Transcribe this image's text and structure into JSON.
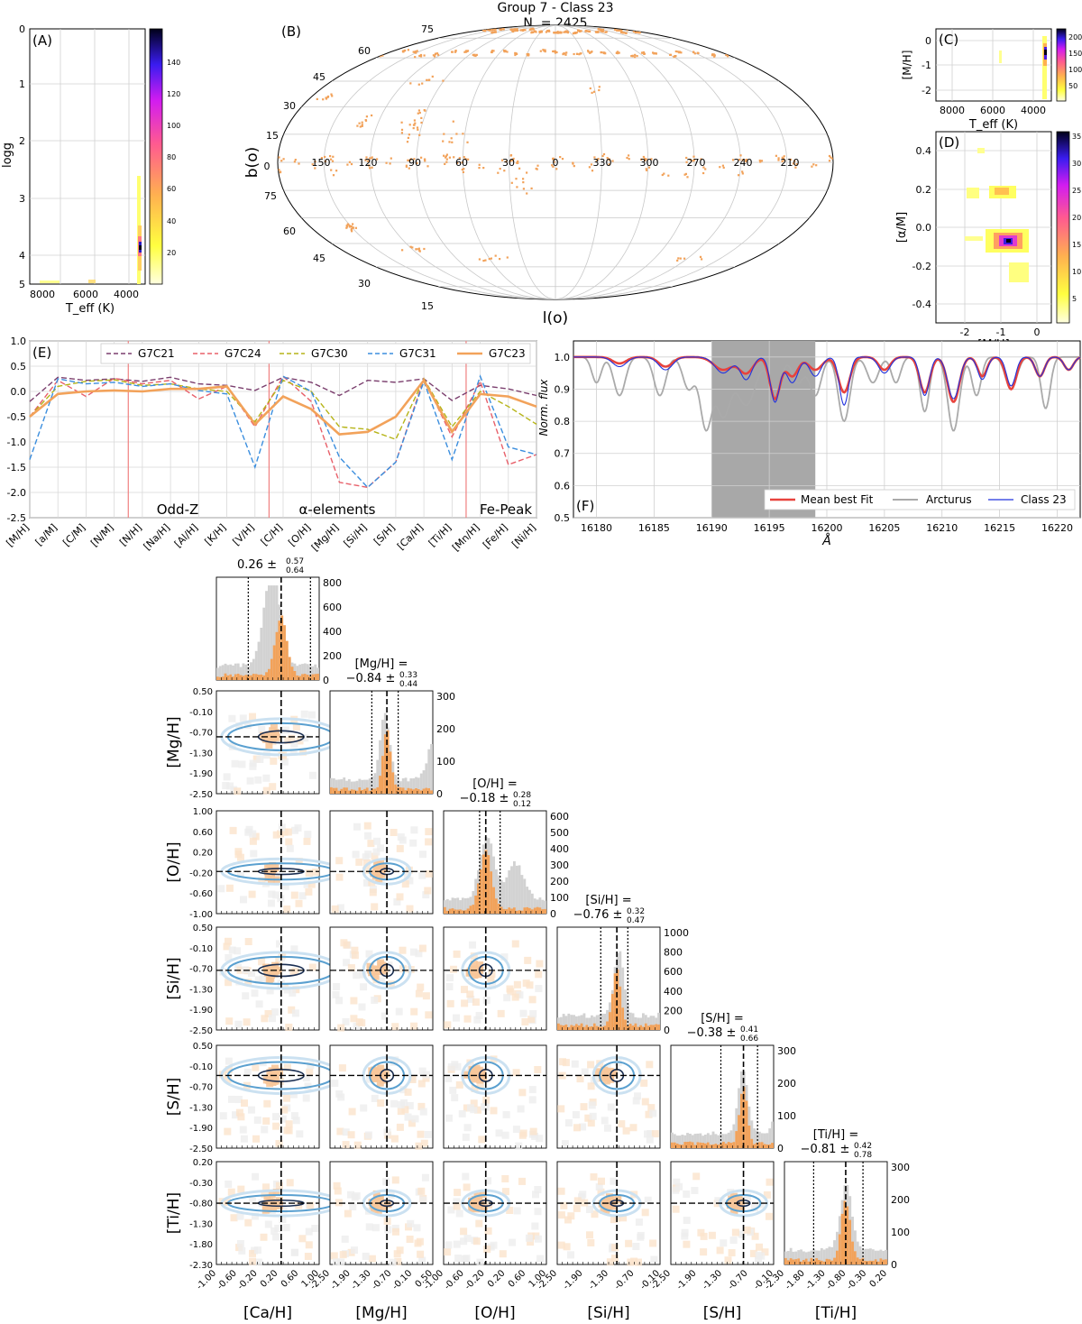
{
  "figure": {
    "title_line1": "Group 7 - Class 23",
    "title_line2": "N. = 2425"
  },
  "colors": {
    "accent_orange": "#f2a25a",
    "red": "#e8433d",
    "grey": "#aaaaaa",
    "blue": "#2233dd",
    "contour_light": "#a9cde6",
    "contour_mid": "#5aa0d0",
    "contour_dark": "#1b2f52"
  },
  "chart_data": [
    {
      "id": "A",
      "type": "heatmap",
      "panel_label": "(A)",
      "xlabel": "T_eff (K)",
      "ylabel": "logg",
      "xlim": [
        8900,
        3300
      ],
      "ylim": [
        5,
        0
      ],
      "xticks": [
        "8000",
        "6000",
        "4000"
      ],
      "yticks": [
        "0",
        "1",
        "2",
        "3",
        "4",
        "5"
      ],
      "colorbar_ticks": [
        "140",
        "120",
        "100",
        "80",
        "60",
        "40",
        "20"
      ],
      "colorbar_range": [
        0,
        160
      ]
    },
    {
      "id": "B",
      "type": "scatter",
      "panel_label": "(B)",
      "projection": "Mollweide",
      "xlabel": "l(o)",
      "ylabel": "b(o)",
      "longitude_labels": [
        "150",
        "120",
        "90",
        "60",
        "30",
        "0",
        "330",
        "300",
        "270",
        "240",
        "210"
      ],
      "latitude_labels_upper": [
        "75",
        "60",
        "45",
        "30",
        "15",
        "0"
      ],
      "latitude_labels_lower": [
        "75",
        "60",
        "45",
        "30",
        "15"
      ]
    },
    {
      "id": "C",
      "type": "heatmap",
      "panel_label": "(C)",
      "xlabel": "T_eff (K)",
      "ylabel": "[M/H]",
      "xlim": [
        8900,
        3300
      ],
      "ylim": [
        -2.4,
        0.5
      ],
      "xticks": [
        "8000",
        "6000",
        "4000"
      ],
      "yticks": [
        "0",
        "-1",
        "-2"
      ],
      "colorbar_ticks": [
        "200",
        "150",
        "100",
        "50"
      ]
    },
    {
      "id": "D",
      "type": "heatmap",
      "panel_label": "(D)",
      "xlabel": "[M/H]",
      "ylabel": "[α/M]",
      "xlim": [
        -2.6,
        0.6
      ],
      "ylim": [
        -0.5,
        0.5
      ],
      "xticks": [
        "-2",
        "-1",
        "0"
      ],
      "yticks": [
        "0.4",
        "0.2",
        "0.0",
        "-0.2",
        "-0.4"
      ],
      "colorbar_ticks": [
        "35",
        "30",
        "25",
        "20",
        "15",
        "10",
        "5"
      ]
    },
    {
      "id": "E",
      "type": "line",
      "panel_label": "(E)",
      "ylim": [
        -2.5,
        1.0
      ],
      "yticks": [
        "1.0",
        "0.5",
        "0.0",
        "-0.5",
        "-1.0",
        "-1.5",
        "-2.0",
        "-2.5"
      ],
      "categories": [
        "[M/H]",
        "[a/M]",
        "[C/M]",
        "[N/M]",
        "[N/H]",
        "[Na/H]",
        "[Al/H]",
        "[K/H]",
        "[V/H]",
        "[C/H]",
        "[O/H]",
        "[Mg/H]",
        "[Si/H]",
        "[S/H]",
        "[Ca/H]",
        "[Ti/H]",
        "[Mn/H]",
        "[Fe/H]",
        "[Ni/H]"
      ],
      "group_labels": [
        "Odd-Z",
        "α-elements",
        "Fe-Peak"
      ],
      "series": [
        {
          "name": "G7C21",
          "color": "#7b3f6e",
          "dashed": true,
          "values": [
            -0.2,
            0.28,
            0.22,
            0.25,
            0.2,
            0.28,
            0.15,
            0.12,
            0.02,
            0.28,
            0.18,
            -0.08,
            0.22,
            0.18,
            0.25,
            -0.18,
            0.12,
            0.05,
            -0.08
          ]
        },
        {
          "name": "G7C24",
          "color": "#e8606a",
          "dashed": true,
          "values": [
            -0.5,
            0.22,
            -0.1,
            0.26,
            0.15,
            0.22,
            -0.15,
            0.1,
            -0.7,
            0.3,
            -0.2,
            -1.8,
            -1.9,
            -1.4,
            0.25,
            -0.9,
            0.2,
            -1.45,
            -1.25
          ]
        },
        {
          "name": "G7C30",
          "color": "#b6b418",
          "dashed": true,
          "values": [
            -0.5,
            0.1,
            0.2,
            0.23,
            0.12,
            0.15,
            0.05,
            0.0,
            -0.6,
            0.22,
            0.0,
            -0.7,
            -0.75,
            -0.95,
            0.25,
            -0.7,
            0.0,
            -0.3,
            -0.65
          ]
        },
        {
          "name": "G7C31",
          "color": "#3b8ede",
          "dashed": true,
          "values": [
            -1.35,
            0.25,
            0.15,
            0.18,
            0.1,
            0.15,
            0.02,
            -0.05,
            -1.5,
            0.3,
            0.0,
            -1.3,
            -1.9,
            -1.4,
            0.2,
            -1.35,
            0.3,
            -1.1,
            -1.25
          ]
        },
        {
          "name": "G7C23",
          "color": "#f2a25a",
          "dashed": false,
          "values": [
            -0.5,
            -0.05,
            0.0,
            0.02,
            0.0,
            0.05,
            0.05,
            0.1,
            -0.65,
            -0.1,
            -0.35,
            -0.85,
            -0.8,
            -0.5,
            0.22,
            -0.8,
            -0.05,
            -0.1,
            -0.3
          ]
        }
      ]
    },
    {
      "id": "F",
      "type": "line",
      "panel_label": "(F)",
      "xlabel": "Å",
      "ylabel": "Norm. flux",
      "xlim": [
        16178,
        16222
      ],
      "ylim": [
        0.5,
        1.05
      ],
      "xticks": [
        "16180",
        "16185",
        "16190",
        "16195",
        "16200",
        "16205",
        "16210",
        "16215",
        "16220"
      ],
      "yticks": [
        "1.0",
        "0.9",
        "0.8",
        "0.7",
        "0.6",
        "0.5"
      ],
      "shaded_region": [
        16190,
        16199
      ],
      "series": [
        {
          "name": "Mean best Fit",
          "color": "#e8433d"
        },
        {
          "name": "Arcturus",
          "color": "#aaaaaa"
        },
        {
          "name": "Class 23",
          "color": "#2233dd"
        }
      ]
    },
    {
      "id": "corner",
      "type": "heatmap",
      "variables": [
        "[Ca/H]",
        "[Mg/H]",
        "[O/H]",
        "[Si/H]",
        "[S/H]",
        "[Ti/H]"
      ],
      "medians": [
        0.26,
        -0.84,
        -0.18,
        -0.76,
        -0.38,
        -0.81
      ],
      "upper_errors": [
        0.57,
        0.33,
        0.28,
        0.32,
        0.41,
        0.42
      ],
      "lower_errors": [
        0.64,
        0.44,
        0.12,
        0.47,
        0.66,
        0.78
      ],
      "titles": [
        {
          "median": "0.26",
          "up": "0.57",
          "low": "0.64"
        },
        {
          "label": "[Mg/H] =",
          "median": "−0.84",
          "up": "0.33",
          "low": "0.44"
        },
        {
          "label": "[O/H] =",
          "median": "−0.18",
          "up": "0.28",
          "low": "0.12"
        },
        {
          "label": "[Si/H] =",
          "median": "−0.76",
          "up": "0.32",
          "low": "0.47"
        },
        {
          "label": "[S/H] =",
          "median": "−0.38",
          "up": "0.41",
          "low": "0.66"
        },
        {
          "label": "[Ti/H] =",
          "median": "−0.81",
          "up": "0.42",
          "low": "0.78"
        }
      ],
      "hist_yticks": [
        [
          "800",
          "600",
          "400",
          "200",
          "0"
        ],
        [
          "300",
          "200",
          "100",
          "0"
        ],
        [
          "600",
          "500",
          "400",
          "300",
          "200",
          "100",
          "0"
        ],
        [
          "1000",
          "800",
          "600",
          "400",
          "200",
          "0"
        ],
        [
          "300",
          "200",
          "100",
          "0"
        ],
        [
          "300",
          "200",
          "100",
          "0"
        ]
      ],
      "row_yticks": [
        [
          "0.50",
          "-0.10",
          "-0.70",
          "-1.30",
          "-1.90",
          "-2.50"
        ],
        [
          "1.00",
          "0.60",
          "0.20",
          "-0.20",
          "-0.60",
          "-1.00"
        ],
        [
          "0.50",
          "-0.10",
          "-0.70",
          "-1.30",
          "-1.90",
          "-2.50"
        ],
        [
          "0.50",
          "-0.10",
          "-0.70",
          "-1.30",
          "-1.90",
          "-2.50"
        ],
        [
          "0.20",
          "-0.30",
          "-0.80",
          "-1.30",
          "-1.80",
          "-2.30"
        ]
      ],
      "col_xticks": [
        [
          "-1.00",
          "-0.60",
          "-0.20",
          "0.20",
          "0.60",
          "1.00"
        ],
        [
          "-2.50",
          "-1.90",
          "-1.30",
          "-0.70",
          "-0.10",
          "0.50"
        ],
        [
          "-1.00",
          "-0.60",
          "-0.20",
          "0.20",
          "0.60",
          "1.00"
        ],
        [
          "-2.50",
          "-1.90",
          "-1.30",
          "-0.70",
          "-0.10"
        ],
        [
          "-2.50",
          "-1.90",
          "-1.30",
          "-0.70",
          "-0.10"
        ],
        [
          "-2.30",
          "-1.80",
          "-1.30",
          "-0.80",
          "-0.30",
          "0.20"
        ]
      ]
    }
  ]
}
